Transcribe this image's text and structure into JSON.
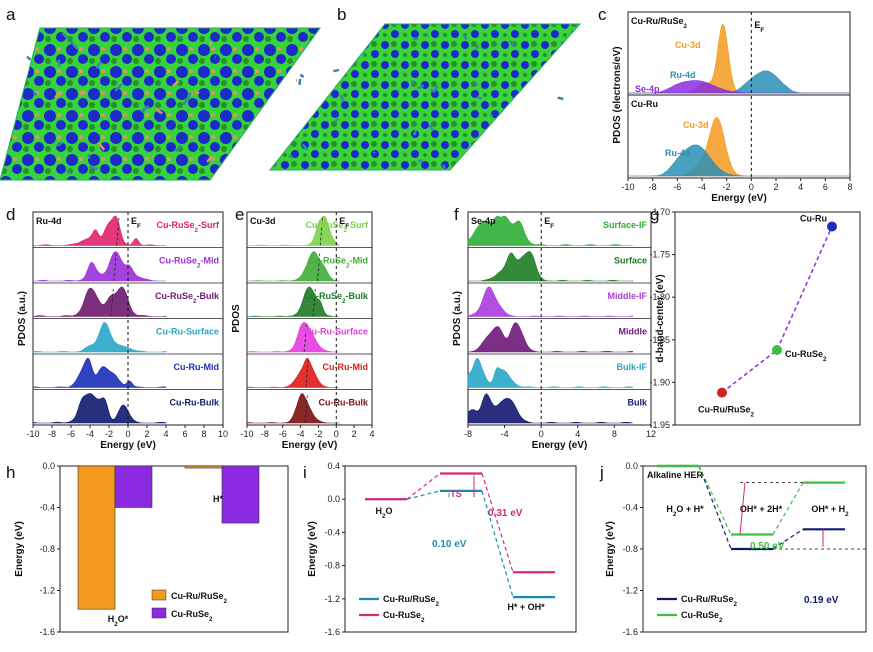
{
  "panel_labels": [
    "a",
    "b",
    "c",
    "d",
    "e",
    "f",
    "g",
    "h",
    "i",
    "j"
  ],
  "structures": [
    {
      "panel": "a",
      "name": "Cu-Ru/RuSe2 charge density"
    },
    {
      "panel": "b",
      "name": "Cu-RuSe2 charge density"
    }
  ],
  "chart_data": [
    {
      "panel": "c",
      "type": "area",
      "ylabel": "PDOS (electrons/eV)",
      "xlabel": "Energy (eV)",
      "xlim": [
        -10,
        8
      ],
      "xticks": [
        "-10",
        "-8",
        "-6",
        "-4",
        "-2",
        "0",
        "2",
        "4",
        "6",
        "8"
      ],
      "fermi_label": "E",
      "fermi_sub": "F",
      "subpanels": [
        {
          "title": "Cu-Ru/RuSe₂",
          "series": [
            {
              "name": "Cu-3d",
              "color": "#f39a1e",
              "peak": -2.3,
              "height": 1.0,
              "width": 0.6
            },
            {
              "name": "Ru-4d",
              "color": "#2a8fb5",
              "peak": 1.2,
              "height": 0.32,
              "width": 1.5
            },
            {
              "name": "Se-4p",
              "color": "#8a2be2",
              "peak": -4.5,
              "height": 0.18,
              "width": 2.0
            }
          ]
        },
        {
          "title": "Cu-Ru",
          "series": [
            {
              "name": "Cu-3d",
              "color": "#f39a1e",
              "peak": -2.8,
              "height": 0.85,
              "width": 0.9
            },
            {
              "name": "Ru-4d",
              "color": "#2a8fb5",
              "peak": -4.5,
              "height": 0.45,
              "width": 1.6
            }
          ]
        }
      ]
    },
    {
      "panel": "d",
      "type": "area",
      "title": "Ru-4d",
      "ylabel": "PDOS (a.u.)",
      "xlabel": "Energy (eV)",
      "xlim": [
        -10,
        10
      ],
      "xticks": [
        "-10",
        "-8",
        "-6",
        "-4",
        "-2",
        "0",
        "2",
        "4",
        "6",
        "8",
        "10"
      ],
      "fermi_label": "E",
      "fermi_sub": "F",
      "series": [
        {
          "name": "Cu-RuSe₂-Surf",
          "color": "#e0226b",
          "center": -1.5,
          "d_center": -1.2
        },
        {
          "name": "Cu-RuSe₂-Mid",
          "color": "#9b30d9",
          "center": -1.5,
          "d_center": -1.5
        },
        {
          "name": "Cu-RuSe₂-Bulk",
          "color": "#6d1a6f",
          "center": -1.8,
          "d_center": -1.8
        },
        {
          "name": "Cu-Ru-Surface",
          "color": "#2aa6c9",
          "center": -2.5
        },
        {
          "name": "Cu-Ru-Mid",
          "color": "#1b2fb8",
          "center": -2.5
        },
        {
          "name": "Cu-Ru-Bulk",
          "color": "#0e1a6e",
          "center": -2.8
        }
      ]
    },
    {
      "panel": "e",
      "type": "area",
      "title": "Cu-3d",
      "ylabel": "PDOS",
      "xlabel": "Energy (eV)",
      "xlim": [
        -10,
        4
      ],
      "xticks": [
        "-10",
        "-8",
        "-6",
        "-4",
        "-2",
        "0",
        "2",
        "4"
      ],
      "fermi_label": "E",
      "fermi_sub": "F",
      "series": [
        {
          "name": "Cu-RuSe₂-Surf",
          "color": "#7bd14a",
          "center": -1.8
        },
        {
          "name": "Cu-RuSe₂-Mid",
          "color": "#3fae3a",
          "center": -2.1
        },
        {
          "name": "Cu-RuSe₂-Bulk",
          "color": "#1f7a27",
          "center": -2.6
        },
        {
          "name": "Cu-Ru-Surface",
          "color": "#e63be0",
          "center": -3.6
        },
        {
          "name": "Cu-Ru-Mid",
          "color": "#e01b1b",
          "center": -3.4
        },
        {
          "name": "Cu-Ru-Bulk",
          "color": "#7a1212",
          "center": -3.5
        }
      ]
    },
    {
      "panel": "f",
      "type": "area",
      "title": "Se-4p",
      "ylabel": "PDOS (a.u.)",
      "xlabel": "Energy (eV)",
      "xlim": [
        -8,
        12
      ],
      "xticks": [
        "-8",
        "-4",
        "0",
        "4",
        "8",
        "12"
      ],
      "fermi_label": "E",
      "fermi_sub": "F",
      "series": [
        {
          "name": "Surface-IF",
          "color": "#2fae35",
          "center": -4.0
        },
        {
          "name": "Surface",
          "color": "#1d7d22",
          "center": -3.2
        },
        {
          "name": "Middle-IF",
          "color": "#a63de0",
          "center": -6.0
        },
        {
          "name": "Middle",
          "color": "#6e1a78",
          "center": -4.5
        },
        {
          "name": "Bulk-IF",
          "color": "#2aa6c9",
          "center": -6.5
        },
        {
          "name": "Bulk",
          "color": "#12186e",
          "center": -5.8
        }
      ]
    },
    {
      "panel": "g",
      "type": "scatter",
      "ylabel": "d-band-center (eV)",
      "ylim": [
        -1.95,
        -1.7
      ],
      "yticks": [
        "-1.70",
        "-1.75",
        "-1.80",
        "-1.85",
        "-1.90",
        "-1.95"
      ],
      "points": [
        {
          "label": "Cu-Ru/RuSe₂",
          "y": -1.912,
          "color": "#d42020"
        },
        {
          "label": "Cu-RuSe₂",
          "y": -1.862,
          "color": "#3fbf3f"
        },
        {
          "label": "Cu-Ru",
          "y": -1.717,
          "color": "#1b2fb8"
        }
      ]
    },
    {
      "panel": "h",
      "type": "bar",
      "ylabel": "Energy (eV)",
      "ylim": [
        -1.6,
        0
      ],
      "yticks": [
        "0.0",
        "-0.4",
        "-0.8",
        "-1.2",
        "-1.6"
      ],
      "categories": [
        "H₂O*",
        "H*"
      ],
      "series": [
        {
          "name": "Cu-Ru/RuSe₂",
          "color": "#f39a1e",
          "values": [
            -1.38,
            -0.02
          ]
        },
        {
          "name": "Cu-RuSe₂",
          "color": "#8a2be2",
          "values": [
            -0.4,
            -0.55
          ]
        }
      ]
    },
    {
      "panel": "i",
      "type": "line",
      "ylabel": "Energy (eV)",
      "ylim": [
        -1.6,
        0.4
      ],
      "yticks": [
        "0.4",
        "0.0",
        "-0.4",
        "-0.8",
        "-1.2",
        "-1.6"
      ],
      "states": [
        "H₂O",
        "TS",
        "H* + OH*"
      ],
      "series": [
        {
          "name": "Cu-Ru/RuSe₂",
          "color": "#1a8cb0",
          "values": [
            0.0,
            0.1,
            -1.18
          ]
        },
        {
          "name": "Cu-RuSe₂",
          "color": "#d42a7a",
          "values": [
            0.0,
            0.31,
            -0.88
          ]
        }
      ],
      "annotations": [
        "0.31 eV",
        "0.10 eV"
      ]
    },
    {
      "panel": "j",
      "type": "line",
      "title": "Alkaline HER",
      "ylabel": "Energy (eV)",
      "ylim": [
        -1.6,
        0.0
      ],
      "yticks": [
        "0.0",
        "-0.4",
        "-0.8",
        "-1.2",
        "-1.6"
      ],
      "states": [
        "H₂O + H*",
        "OH* + 2H*",
        "OH* + H₂"
      ],
      "series": [
        {
          "name": "Cu-Ru/RuSe₂",
          "color": "#12186e",
          "values": [
            0.0,
            -0.8,
            -0.61
          ]
        },
        {
          "name": "Cu-RuSe₂",
          "color": "#3fbf3f",
          "values": [
            0.0,
            -0.66,
            -0.16
          ]
        }
      ],
      "annotations": [
        "0.50 eV",
        "0.19 eV"
      ]
    }
  ]
}
